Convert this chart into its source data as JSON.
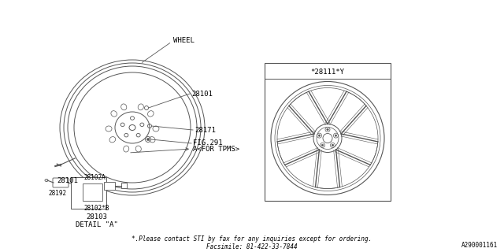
{
  "bg_color": "#ffffff",
  "footer_line1": "*.Please contact STI by fax for any inquiries except for ordering.",
  "footer_line2": "Facsimile: 81-422-33-7844",
  "doc_id": "A290001161",
  "part_label_wheel": "WHEEL",
  "part_28101_label": "28101",
  "part_28101_bottom_label": "28101",
  "part_28171_label": "28171",
  "part_fig291_label": "FIG.291",
  "part_tpms_label": "A<FOR TPMS>",
  "part_28192_label": "28192",
  "part_28102a_label": "28102A",
  "part_28102b_label": "28102*B",
  "part_28103_label": "28103",
  "detail_label": "DETAIL \"A\"",
  "inset_label": "*28111*Y",
  "line_color": "#555555",
  "text_color": "#000000",
  "font_size": 6.5,
  "small_font_size": 5.5
}
